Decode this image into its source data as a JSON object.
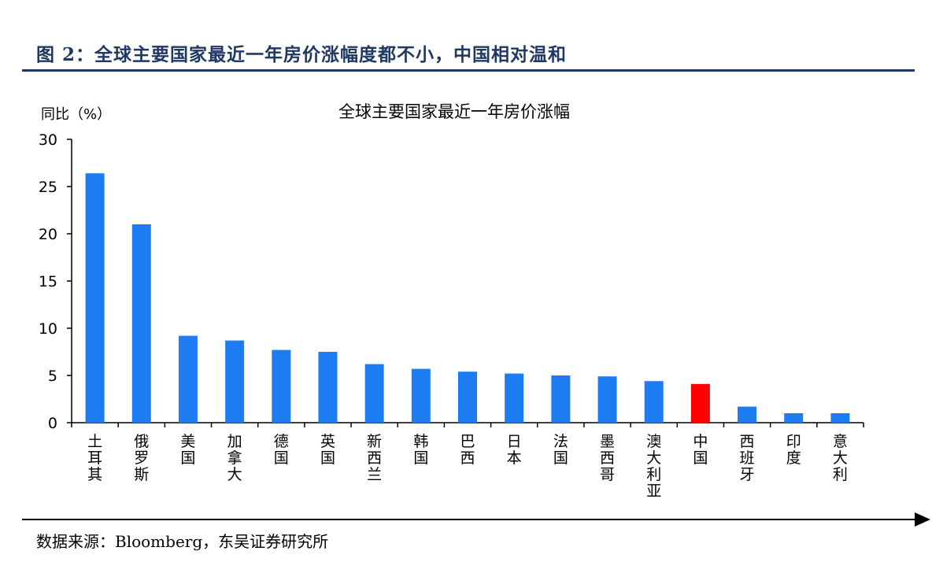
{
  "figure_title": "图 2：全球主要国家最近一年房价涨幅度都不小，中国相对温和",
  "source_note": "数据来源：Bloomberg，东吴证券研究所",
  "colors": {
    "bar": "#1e7cf2",
    "highlight": "#ff0000",
    "title": "#1f3864"
  },
  "chart_data": {
    "type": "bar",
    "title": "全球主要国家最近一年房价涨幅",
    "ylabel": "同比（%）",
    "xlabel": "",
    "ylim": [
      0,
      30
    ],
    "yticks": [
      0,
      5,
      10,
      15,
      20,
      25,
      30
    ],
    "grid": false,
    "categories": [
      "土耳其",
      "俄罗斯",
      "美国",
      "加拿大",
      "德国",
      "英国",
      "新西兰",
      "韩国",
      "巴西",
      "日本",
      "法国",
      "墨西哥",
      "澳大利亚",
      "中国",
      "西班牙",
      "印度",
      "意大利"
    ],
    "values": [
      26.4,
      21.0,
      9.2,
      8.7,
      7.7,
      7.5,
      6.2,
      5.7,
      5.4,
      5.2,
      5.0,
      4.9,
      4.4,
      4.1,
      1.7,
      1.0,
      1.0
    ],
    "highlight_category": "中国"
  }
}
